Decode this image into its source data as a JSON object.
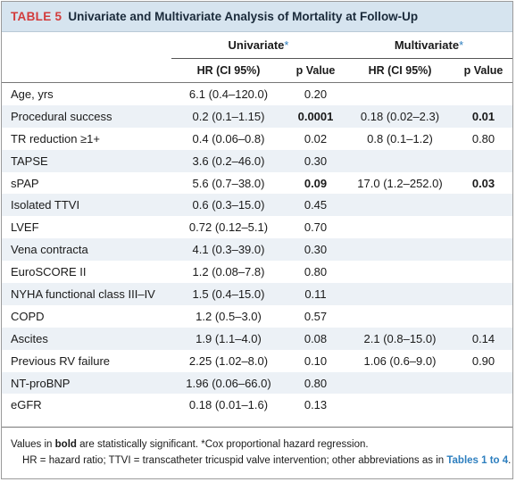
{
  "title": {
    "number": "TABLE 5",
    "text": "Univariate and Multivariate Analysis of Mortality at Follow-Up"
  },
  "groups": {
    "univariate": "Univariate",
    "multivariate": "Multivariate",
    "star": "*"
  },
  "subheaders": {
    "hr": "HR (CI 95%)",
    "p": "p Value"
  },
  "rows": [
    {
      "label": "Age, yrs",
      "u_hr": "6.1 (0.4–120.0)",
      "u_p": "0.20",
      "m_hr": "",
      "m_p": ""
    },
    {
      "label": "Procedural success",
      "u_hr": "0.2 (0.1–1.15)",
      "u_p": "0.0001",
      "m_hr": "0.18 (0.02–2.3)",
      "m_p": "0.01"
    },
    {
      "label": "TR reduction ≥1+",
      "u_hr": "0.4 (0.06–0.8)",
      "u_p": "0.02",
      "m_hr": "0.8 (0.1–1.2)",
      "m_p": "0.80"
    },
    {
      "label": "TAPSE",
      "u_hr": "3.6 (0.2–46.0)",
      "u_p": "0.30",
      "m_hr": "",
      "m_p": ""
    },
    {
      "label": "sPAP",
      "u_hr": "5.6 (0.7–38.0)",
      "u_p": "0.09",
      "m_hr": "17.0 (1.2–252.0)",
      "m_p": "0.03"
    },
    {
      "label": "Isolated TTVI",
      "u_hr": "0.6 (0.3–15.0)",
      "u_p": "0.45",
      "m_hr": "",
      "m_p": ""
    },
    {
      "label": "LVEF",
      "u_hr": "0.72 (0.12–5.1)",
      "u_p": "0.70",
      "m_hr": "",
      "m_p": ""
    },
    {
      "label": "Vena contracta",
      "u_hr": "4.1 (0.3–39.0)",
      "u_p": "0.30",
      "m_hr": "",
      "m_p": ""
    },
    {
      "label": "EuroSCORE II",
      "u_hr": "1.2 (0.08–7.8)",
      "u_p": "0.80",
      "m_hr": "",
      "m_p": ""
    },
    {
      "label": "NYHA functional class III–IV",
      "u_hr": "1.5 (0.4–15.0)",
      "u_p": "0.11",
      "m_hr": "",
      "m_p": ""
    },
    {
      "label": "COPD",
      "u_hr": "1.2 (0.5–3.0)",
      "u_p": "0.57",
      "m_hr": "",
      "m_p": ""
    },
    {
      "label": "Ascites",
      "u_hr": "1.9 (1.1–4.0)",
      "u_p": "0.08",
      "m_hr": "2.1 (0.8–15.0)",
      "m_p": "0.14"
    },
    {
      "label": "Previous RV failure",
      "u_hr": "2.25 (1.02–8.0)",
      "u_p": "0.10",
      "m_hr": "1.06 (0.6–9.0)",
      "m_p": "0.90"
    },
    {
      "label": "NT-proBNP",
      "u_hr": "1.96 (0.06–66.0)",
      "u_p": "0.80",
      "m_hr": "",
      "m_p": ""
    },
    {
      "label": "eGFR",
      "u_hr": "0.18 (0.01–1.6)",
      "u_p": "0.13",
      "m_hr": "",
      "m_p": ""
    }
  ],
  "footnote": {
    "l1_a": "Values in ",
    "l1_bold": "bold",
    "l1_b": " are statistically significant. *Cox proportional hazard regression.",
    "l2_a": "HR = hazard ratio; TTVI = transcatheter tricuspid valve intervention; other abbreviations as in ",
    "l2_ref": "Tables 1 to 4",
    "l2_b": "."
  }
}
